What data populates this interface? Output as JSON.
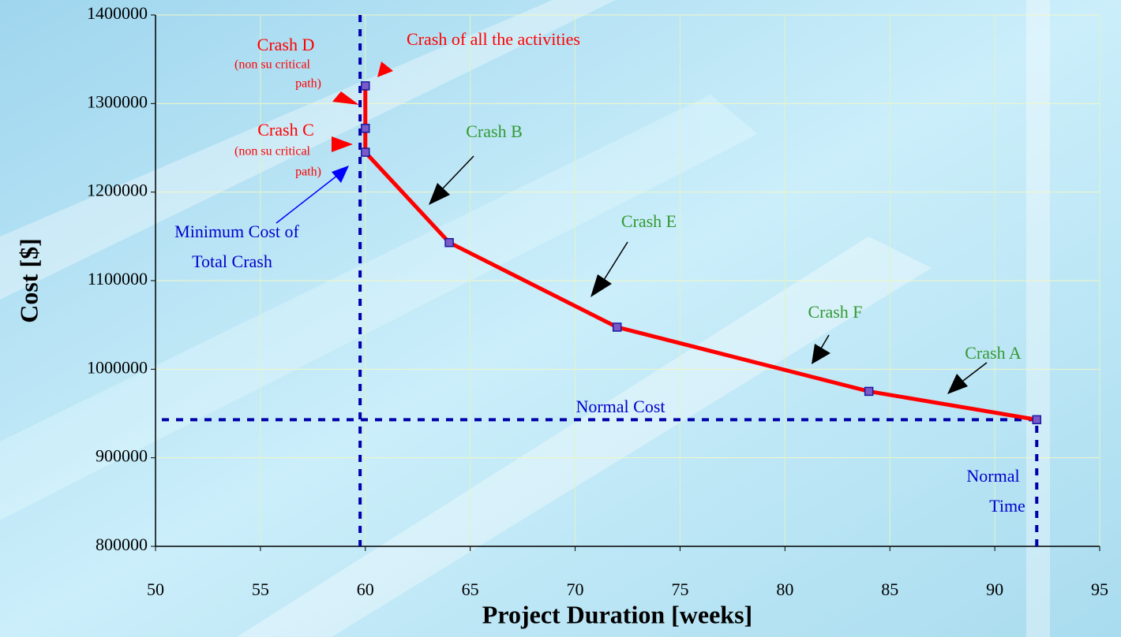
{
  "chart_data": {
    "type": "line",
    "xlabel": "Project Duration [weeks]",
    "ylabel": "Cost [$]",
    "x": [
      60,
      60,
      60,
      64,
      72,
      84,
      92
    ],
    "series": [
      {
        "color": "#ff0000",
        "values": [
          1320000,
          1272000,
          1245000,
          1143000,
          1047500,
          975000,
          943000
        ]
      }
    ],
    "xlim": [
      50,
      95
    ],
    "xticks": [
      50,
      55,
      60,
      65,
      70,
      75,
      80,
      85,
      90,
      95
    ],
    "ylim": [
      800000,
      1400000
    ],
    "yticks": [
      800000,
      900000,
      1000000,
      1100000,
      1200000,
      1300000,
      1400000
    ],
    "grid": true,
    "reference_lines": [
      {
        "x": 59.75
      },
      {
        "y": 943000
      },
      {
        "x": 92
      }
    ],
    "annotations": [
      {
        "text": "Crash D",
        "color": "#ff0000"
      },
      {
        "text": "(non su critical",
        "color": "#ff0000"
      },
      {
        "text": "path)",
        "color": "#ff0000"
      },
      {
        "text": "Crash of all the activities",
        "color": "#ff0000"
      },
      {
        "text": "Crash C",
        "color": "#ff0000"
      },
      {
        "text": "(non su critical",
        "color": "#ff0000"
      },
      {
        "text": "path)",
        "color": "#ff0000"
      },
      {
        "text": "Crash B",
        "color": "#339933"
      },
      {
        "text": "Minimum Cost of",
        "color": "#0000cc"
      },
      {
        "text": "Total Crash",
        "color": "#0000cc"
      },
      {
        "text": "Crash E",
        "color": "#339933"
      },
      {
        "text": "Crash F",
        "color": "#339933"
      },
      {
        "text": "Crash A",
        "color": "#339933"
      },
      {
        "text": "Normal Cost",
        "color": "#0000cc"
      },
      {
        "text": "Normal",
        "color": "#0000cc"
      },
      {
        "text": "Time",
        "color": "#0000cc"
      }
    ]
  }
}
